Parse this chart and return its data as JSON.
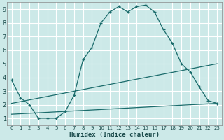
{
  "xlabel": "Humidex (Indice chaleur)",
  "bg_color": "#cce9e8",
  "grid_color": "#b8d8d8",
  "line_color": "#1a6b6b",
  "xlim_min": -0.5,
  "xlim_max": 23.5,
  "ylim_min": 0.5,
  "ylim_max": 9.5,
  "xticks": [
    0,
    1,
    2,
    3,
    4,
    5,
    6,
    7,
    8,
    9,
    10,
    11,
    12,
    13,
    14,
    15,
    16,
    17,
    18,
    19,
    20,
    21,
    22,
    23
  ],
  "yticks": [
    1,
    2,
    3,
    4,
    5,
    6,
    7,
    8,
    9
  ],
  "main_x": [
    0,
    1,
    2,
    3,
    4,
    5,
    6,
    7,
    8,
    9,
    10,
    11,
    12,
    13,
    14,
    15,
    16,
    17,
    18,
    19,
    20,
    21,
    22,
    23
  ],
  "main_y": [
    3.8,
    2.5,
    2.0,
    1.0,
    1.0,
    1.0,
    1.5,
    2.7,
    5.3,
    6.2,
    8.0,
    8.8,
    9.2,
    8.8,
    9.2,
    9.3,
    8.8,
    7.5,
    6.5,
    5.0,
    4.4,
    3.3,
    2.3,
    2.1
  ],
  "line2_x": [
    0,
    23
  ],
  "line2_y": [
    2.1,
    5.0
  ],
  "line3_x": [
    0,
    23
  ],
  "line3_y": [
    1.3,
    2.1
  ],
  "xlabel_fontsize": 6.5,
  "tick_fontsize_x": 5,
  "tick_fontsize_y": 6
}
